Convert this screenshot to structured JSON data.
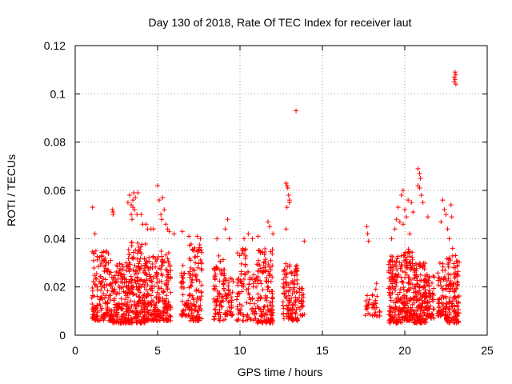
{
  "chart_data": {
    "type": "scatter",
    "title": "Day 130 of 2018, Rate Of TEC Index for receiver laut",
    "xlabel": "GPS time / hours",
    "ylabel": "ROTI / TECUs",
    "xlim": [
      0,
      25
    ],
    "ylim": [
      0,
      0.12
    ],
    "xticks": [
      0,
      5,
      10,
      15,
      20,
      25
    ],
    "xtick_labels": [
      "0",
      "5",
      "10",
      "15",
      "20",
      "25"
    ],
    "yticks": [
      0,
      0.02,
      0.04,
      0.06,
      0.08,
      0.1,
      0.12
    ],
    "ytick_labels": [
      "0",
      "0.02",
      "0.04",
      "0.06",
      "0.08",
      "0.1",
      "0.12"
    ],
    "grid": true,
    "marker": "+",
    "marker_color": "#ff0000",
    "clusters": [
      {
        "x": [
          1.0,
          2.2
        ],
        "y": [
          0.006,
          0.035
        ],
        "n": 160
      },
      {
        "x": [
          2.2,
          3.2
        ],
        "y": [
          0.005,
          0.03
        ],
        "n": 150
      },
      {
        "x": [
          3.2,
          4.3
        ],
        "y": [
          0.005,
          0.04
        ],
        "n": 200
      },
      {
        "x": [
          4.3,
          5.0
        ],
        "y": [
          0.006,
          0.034
        ],
        "n": 110
      },
      {
        "x": [
          5.0,
          5.8
        ],
        "y": [
          0.006,
          0.035
        ],
        "n": 120
      },
      {
        "x": [
          6.4,
          6.9
        ],
        "y": [
          0.008,
          0.03
        ],
        "n": 45
      },
      {
        "x": [
          6.9,
          7.7
        ],
        "y": [
          0.006,
          0.038
        ],
        "n": 110
      },
      {
        "x": [
          8.4,
          9.1
        ],
        "y": [
          0.006,
          0.033
        ],
        "n": 80
      },
      {
        "x": [
          9.1,
          9.6
        ],
        "y": [
          0.008,
          0.027
        ],
        "n": 40
      },
      {
        "x": [
          9.8,
          10.5
        ],
        "y": [
          0.006,
          0.036
        ],
        "n": 60
      },
      {
        "x": [
          10.5,
          11.0
        ],
        "y": [
          0.006,
          0.025
        ],
        "n": 35
      },
      {
        "x": [
          11.0,
          12.0
        ],
        "y": [
          0.005,
          0.036
        ],
        "n": 140
      },
      {
        "x": [
          12.6,
          13.5
        ],
        "y": [
          0.006,
          0.03
        ],
        "n": 120
      },
      {
        "x": [
          13.5,
          13.9
        ],
        "y": [
          0.008,
          0.02
        ],
        "n": 25
      },
      {
        "x": [
          17.6,
          17.9
        ],
        "y": [
          0.008,
          0.018
        ],
        "n": 14
      },
      {
        "x": [
          18.0,
          18.5
        ],
        "y": [
          0.008,
          0.022
        ],
        "n": 25
      },
      {
        "x": [
          19.0,
          19.9
        ],
        "y": [
          0.005,
          0.033
        ],
        "n": 150
      },
      {
        "x": [
          19.9,
          20.5
        ],
        "y": [
          0.006,
          0.036
        ],
        "n": 110
      },
      {
        "x": [
          20.5,
          21.3
        ],
        "y": [
          0.005,
          0.03
        ],
        "n": 150
      },
      {
        "x": [
          21.3,
          21.8
        ],
        "y": [
          0.007,
          0.026
        ],
        "n": 60
      },
      {
        "x": [
          22.0,
          22.5
        ],
        "y": [
          0.008,
          0.03
        ],
        "n": 60
      },
      {
        "x": [
          22.5,
          23.3
        ],
        "y": [
          0.005,
          0.033
        ],
        "n": 130
      }
    ],
    "points": [
      [
        1.05,
        0.053
      ],
      [
        1.2,
        0.042
      ],
      [
        2.25,
        0.052
      ],
      [
        2.3,
        0.05
      ],
      [
        2.3,
        0.051
      ],
      [
        3.2,
        0.055
      ],
      [
        3.3,
        0.058
      ],
      [
        3.4,
        0.054
      ],
      [
        3.5,
        0.056
      ],
      [
        3.55,
        0.059
      ],
      [
        3.6,
        0.052
      ],
      [
        3.65,
        0.057
      ],
      [
        3.75,
        0.05
      ],
      [
        3.8,
        0.059
      ],
      [
        3.4,
        0.05
      ],
      [
        3.5,
        0.053
      ],
      [
        3.45,
        0.048
      ],
      [
        4.0,
        0.05
      ],
      [
        4.1,
        0.046
      ],
      [
        4.3,
        0.046
      ],
      [
        4.4,
        0.044
      ],
      [
        4.6,
        0.044
      ],
      [
        4.75,
        0.044
      ],
      [
        5.0,
        0.062
      ],
      [
        5.1,
        0.056
      ],
      [
        5.2,
        0.05
      ],
      [
        5.25,
        0.048
      ],
      [
        5.3,
        0.057
      ],
      [
        5.4,
        0.052
      ],
      [
        5.5,
        0.046
      ],
      [
        5.6,
        0.044
      ],
      [
        5.7,
        0.043
      ],
      [
        6.0,
        0.042
      ],
      [
        6.5,
        0.043
      ],
      [
        6.9,
        0.041
      ],
      [
        7.4,
        0.041
      ],
      [
        7.6,
        0.04
      ],
      [
        8.6,
        0.04
      ],
      [
        9.1,
        0.044
      ],
      [
        9.25,
        0.048
      ],
      [
        9.35,
        0.04
      ],
      [
        10.25,
        0.04
      ],
      [
        10.5,
        0.042
      ],
      [
        10.75,
        0.04
      ],
      [
        11.1,
        0.041
      ],
      [
        11.7,
        0.047
      ],
      [
        11.8,
        0.045
      ],
      [
        12.0,
        0.042
      ],
      [
        12.8,
        0.063
      ],
      [
        12.85,
        0.062
      ],
      [
        12.9,
        0.061
      ],
      [
        12.95,
        0.058
      ],
      [
        13.0,
        0.056
      ],
      [
        12.85,
        0.053
      ],
      [
        13.0,
        0.055
      ],
      [
        12.8,
        0.044
      ],
      [
        13.4,
        0.093
      ],
      [
        13.9,
        0.039
      ],
      [
        17.7,
        0.045
      ],
      [
        17.75,
        0.042
      ],
      [
        17.8,
        0.039
      ],
      [
        19.2,
        0.04
      ],
      [
        19.4,
        0.044
      ],
      [
        19.5,
        0.048
      ],
      [
        19.6,
        0.053
      ],
      [
        19.7,
        0.047
      ],
      [
        19.8,
        0.058
      ],
      [
        19.9,
        0.046
      ],
      [
        19.9,
        0.06
      ],
      [
        20.0,
        0.052
      ],
      [
        20.1,
        0.049
      ],
      [
        20.2,
        0.056
      ],
      [
        20.3,
        0.042
      ],
      [
        20.4,
        0.055
      ],
      [
        20.5,
        0.051
      ],
      [
        20.8,
        0.069
      ],
      [
        20.9,
        0.067
      ],
      [
        20.95,
        0.065
      ],
      [
        20.9,
        0.061
      ],
      [
        20.8,
        0.062
      ],
      [
        21.0,
        0.058
      ],
      [
        21.1,
        0.055
      ],
      [
        21.4,
        0.049
      ],
      [
        22.2,
        0.047
      ],
      [
        22.3,
        0.056
      ],
      [
        22.4,
        0.052
      ],
      [
        22.5,
        0.05
      ],
      [
        22.6,
        0.044
      ],
      [
        22.7,
        0.04
      ],
      [
        22.8,
        0.054
      ],
      [
        22.85,
        0.049
      ],
      [
        22.7,
        0.032
      ],
      [
        22.9,
        0.036
      ],
      [
        23.0,
        0.107
      ],
      [
        23.05,
        0.109
      ],
      [
        23.1,
        0.108
      ],
      [
        23.05,
        0.106
      ],
      [
        23.1,
        0.104
      ],
      [
        23.0,
        0.105
      ]
    ]
  }
}
